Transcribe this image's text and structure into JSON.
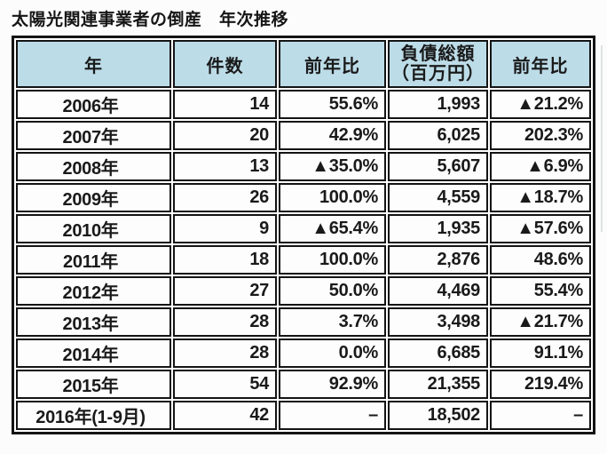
{
  "chart_data": {
    "type": "table",
    "title": "太陽光関連事業者の倒産　年次推移",
    "columns": [
      "年",
      "件数",
      "前年比",
      "負債総額（百万円）",
      "前年比"
    ],
    "header_liabilities_lines": [
      "負債総額",
      "（百万円）"
    ],
    "rows": [
      [
        "2006年",
        "14",
        "55.6%",
        "1,993",
        "▲21.2%"
      ],
      [
        "2007年",
        "20",
        "42.9%",
        "6,025",
        "202.3%"
      ],
      [
        "2008年",
        "13",
        "▲35.0%",
        "5,607",
        "▲6.9%"
      ],
      [
        "2009年",
        "26",
        "100.0%",
        "4,559",
        "▲18.7%"
      ],
      [
        "2010年",
        "9",
        "▲65.4%",
        "1,935",
        "▲57.6%"
      ],
      [
        "2011年",
        "18",
        "100.0%",
        "2,876",
        "48.6%"
      ],
      [
        "2012年",
        "27",
        "50.0%",
        "4,469",
        "55.4%"
      ],
      [
        "2013年",
        "28",
        "3.7%",
        "3,498",
        "▲21.7%"
      ],
      [
        "2014年",
        "28",
        "0.0%",
        "6,685",
        "91.1%"
      ],
      [
        "2015年",
        "54",
        "92.9%",
        "21,355",
        "219.4%"
      ],
      [
        "2016年(1-9月)",
        "42",
        "–",
        "18,502",
        "–"
      ]
    ],
    "years": [
      "2006",
      "2007",
      "2008",
      "2009",
      "2010",
      "2011",
      "2012",
      "2013",
      "2014",
      "2015",
      "2016(1-9月)"
    ],
    "cases_values": [
      14,
      20,
      13,
      26,
      9,
      18,
      27,
      28,
      28,
      54,
      42
    ],
    "liabilities_values_million_yen": [
      1993,
      6025,
      5607,
      4559,
      1935,
      2876,
      4469,
      3498,
      6685,
      21355,
      18502
    ]
  },
  "colors": {
    "header_bg": "#bcdce8",
    "border": "#141414",
    "text": "#1a1a1a"
  }
}
